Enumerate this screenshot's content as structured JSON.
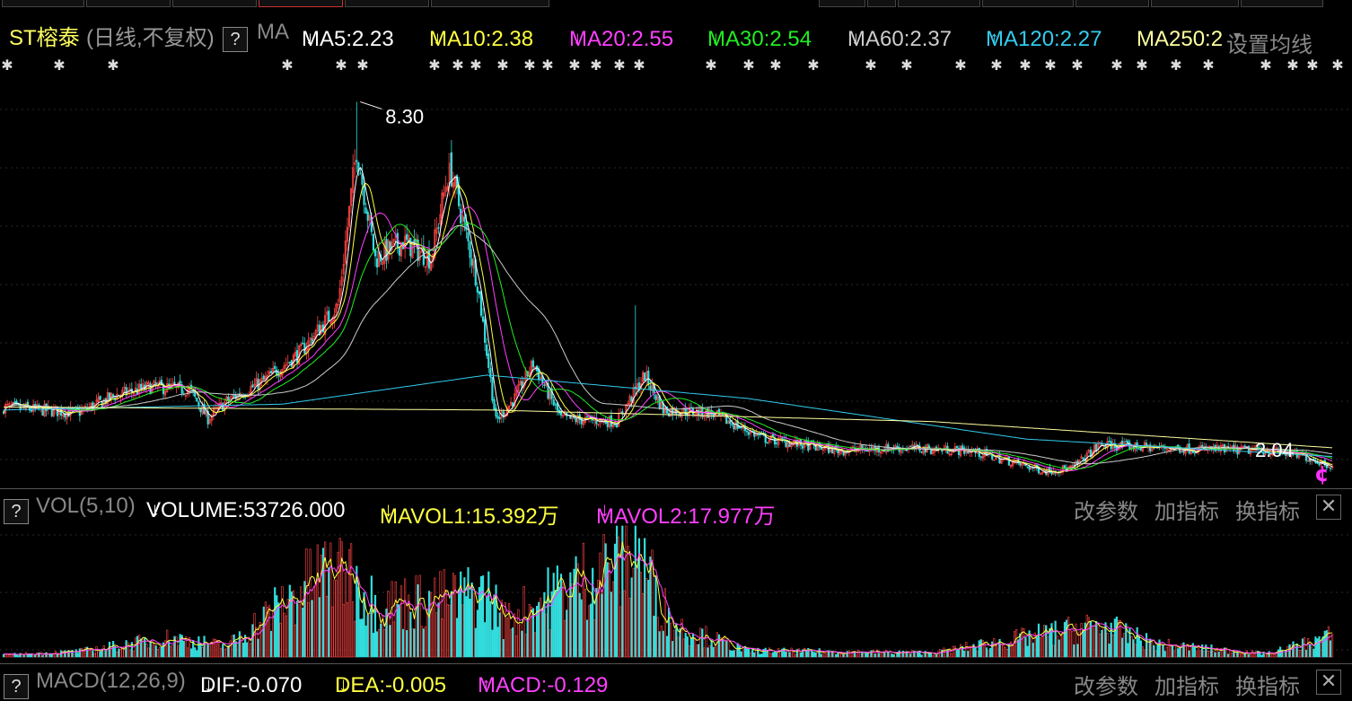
{
  "header": {
    "stock_name": "ST榕泰",
    "period": "(日线,不复权)",
    "help": "?",
    "indicator": "MA",
    "ma_items": [
      {
        "label": "MA5:2.23",
        "arrow": "↓",
        "color": "#ffffff"
      },
      {
        "label": "MA10:2.38",
        "arrow": "↓",
        "color": "#ffff40"
      },
      {
        "label": "MA20:2.55",
        "arrow": "↓",
        "color": "#ff40ff"
      },
      {
        "label": "MA30:2.54",
        "arrow": "↓",
        "color": "#22ee22"
      },
      {
        "label": "MA60:2.37",
        "arrow": "↓",
        "color": "#cccccc"
      },
      {
        "label": "MA120:2.27",
        "arrow": "↑",
        "color": "#33ccee"
      },
      {
        "label": "MA250:2",
        "arrow": "",
        "color": "#ffffa0"
      }
    ],
    "settings": "设置均线",
    "settings_arrow": "▾"
  },
  "price_panel": {
    "high_label": "8.30",
    "low_label": "2.04",
    "marker": "¢"
  },
  "vol_panel": {
    "help": "?",
    "title": "VOL(5,10)",
    "volume": "VOLUME:53726.000",
    "volume_arrow": "↓",
    "mavol1": "MAVOL1:15.392万",
    "mavol1_arrow": "↓",
    "mavol2": "MAVOL2:17.977万",
    "mavol2_arrow": "↓",
    "btn_params": "改参数",
    "btn_add": "加指标",
    "btn_switch": "换指标",
    "close": "✕"
  },
  "macd_panel": {
    "help": "?",
    "title": "MACD(12,26,9)",
    "dif": "DIF:-0.070",
    "dif_arrow": "↓",
    "dea": "DEA:-0.005",
    "dea_arrow": "↓",
    "macd": "MACD:-0.129",
    "macd_arrow": "↑",
    "btn_params": "改参数",
    "btn_add": "加指标",
    "btn_switch": "换指标",
    "close": "✕"
  },
  "colors": {
    "up": "#ff4444",
    "down": "#33dddd",
    "ma5": "#ffffff",
    "ma10": "#ffff40",
    "ma20": "#ff40ff",
    "ma30": "#22ee22",
    "ma60": "#cccccc",
    "ma120": "#33ccee",
    "ma250": "#ffffa0"
  },
  "chart_data": {
    "type": "candlestick",
    "price_range": [
      1.9,
      8.6
    ],
    "price_key_points": [
      [
        0,
        3.05
      ],
      [
        20,
        3.0
      ],
      [
        40,
        2.95
      ],
      [
        60,
        3.25
      ],
      [
        80,
        3.4
      ],
      [
        100,
        3.35
      ],
      [
        110,
        2.85
      ],
      [
        120,
        3.15
      ],
      [
        140,
        3.5
      ],
      [
        160,
        4.0
      ],
      [
        180,
        4.8
      ],
      [
        190,
        7.5
      ],
      [
        200,
        5.6
      ],
      [
        215,
        5.9
      ],
      [
        230,
        5.6
      ],
      [
        240,
        7.2
      ],
      [
        255,
        5.2
      ],
      [
        265,
        2.8
      ],
      [
        275,
        3.2
      ],
      [
        285,
        3.8
      ],
      [
        300,
        2.85
      ],
      [
        330,
        2.8
      ],
      [
        345,
        3.6
      ],
      [
        355,
        3.0
      ],
      [
        380,
        2.95
      ],
      [
        410,
        2.5
      ],
      [
        450,
        2.3
      ],
      [
        480,
        2.35
      ],
      [
        520,
        2.3
      ],
      [
        560,
        1.95
      ],
      [
        575,
        2.0
      ],
      [
        590,
        2.4
      ],
      [
        620,
        2.35
      ],
      [
        680,
        2.3
      ],
      [
        700,
        2.2
      ],
      [
        715,
        2.04
      ]
    ],
    "ma_key_points": {
      "ma250": [
        [
          0,
          3.05
        ],
        [
          260,
          3.0
        ],
        [
          500,
          2.8
        ],
        [
          715,
          2.35
        ]
      ],
      "ma120": [
        [
          0,
          3.0
        ],
        [
          150,
          3.1
        ],
        [
          260,
          3.6
        ],
        [
          400,
          3.2
        ],
        [
          550,
          2.5
        ],
        [
          715,
          2.2
        ]
      ]
    },
    "volume_peaks": [
      [
        0,
        0.02
      ],
      [
        40,
        0.05
      ],
      [
        90,
        0.18
      ],
      [
        120,
        0.1
      ],
      [
        180,
        0.9
      ],
      [
        200,
        0.5
      ],
      [
        240,
        0.55
      ],
      [
        260,
        0.6
      ],
      [
        270,
        0.35
      ],
      [
        340,
        1.0
      ],
      [
        360,
        0.3
      ],
      [
        400,
        0.06
      ],
      [
        500,
        0.04
      ],
      [
        590,
        0.3
      ],
      [
        620,
        0.12
      ],
      [
        680,
        0.03
      ],
      [
        715,
        0.2
      ]
    ]
  }
}
